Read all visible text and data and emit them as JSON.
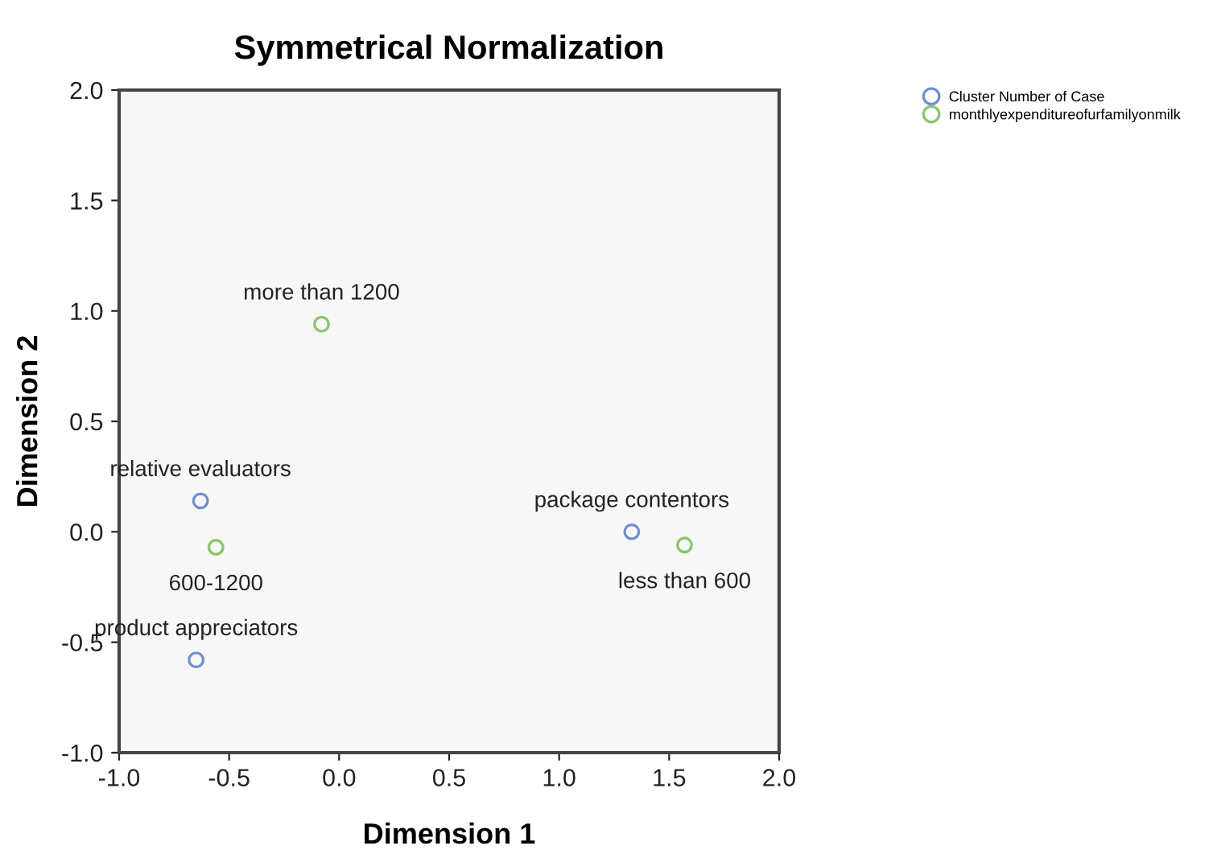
{
  "chart_data": {
    "type": "scatter",
    "title": "Symmetrical Normalization",
    "xlabel": "Dimension 1",
    "ylabel": "Dimension 2",
    "xlim": [
      -1.0,
      2.0
    ],
    "ylim": [
      -1.0,
      2.0
    ],
    "xticks": [
      {
        "value": -1.0,
        "label": "-1.0"
      },
      {
        "value": -0.5,
        "label": "-0.5"
      },
      {
        "value": 0.0,
        "label": "0.0"
      },
      {
        "value": 0.5,
        "label": "0.5"
      },
      {
        "value": 1.0,
        "label": "1.0"
      },
      {
        "value": 1.5,
        "label": "1.5"
      },
      {
        "value": 2.0,
        "label": "2.0"
      }
    ],
    "yticks": [
      {
        "value": -1.0,
        "label": "-1.0"
      },
      {
        "value": -0.5,
        "label": "-0.5"
      },
      {
        "value": 0.0,
        "label": "0.0"
      },
      {
        "value": 0.5,
        "label": "0.5"
      },
      {
        "value": 1.0,
        "label": "1.0"
      },
      {
        "value": 1.5,
        "label": "1.5"
      },
      {
        "value": 2.0,
        "label": "2.0"
      }
    ],
    "marker": "circle",
    "grid": false,
    "legend": "top right",
    "series": [
      {
        "name": "Cluster Number of Case",
        "color": "#6f8fcf",
        "x": [
          -0.63,
          -0.65,
          1.33
        ],
        "values": [
          0.14,
          -0.58,
          0.0
        ]
      },
      {
        "name": "monthlyexpenditureofurfamilyonmilk",
        "color": "#8cc56a",
        "x": [
          -0.08,
          -0.56,
          1.57
        ],
        "values": [
          0.94,
          -0.07,
          -0.06
        ]
      }
    ],
    "annotations": [
      {
        "text": "relative evaluators",
        "x": -0.63,
        "y": 0.14
      },
      {
        "text": "product appreciators",
        "x": -0.65,
        "y": -0.58
      },
      {
        "text": "package contentors",
        "x": 1.33,
        "y": 0.0
      },
      {
        "text": "more than 1200",
        "x": -0.08,
        "y": 0.94
      },
      {
        "text": "600-1200",
        "x": -0.56,
        "y": -0.07
      },
      {
        "text": "less than 600",
        "x": 1.57,
        "y": -0.06
      }
    ]
  }
}
